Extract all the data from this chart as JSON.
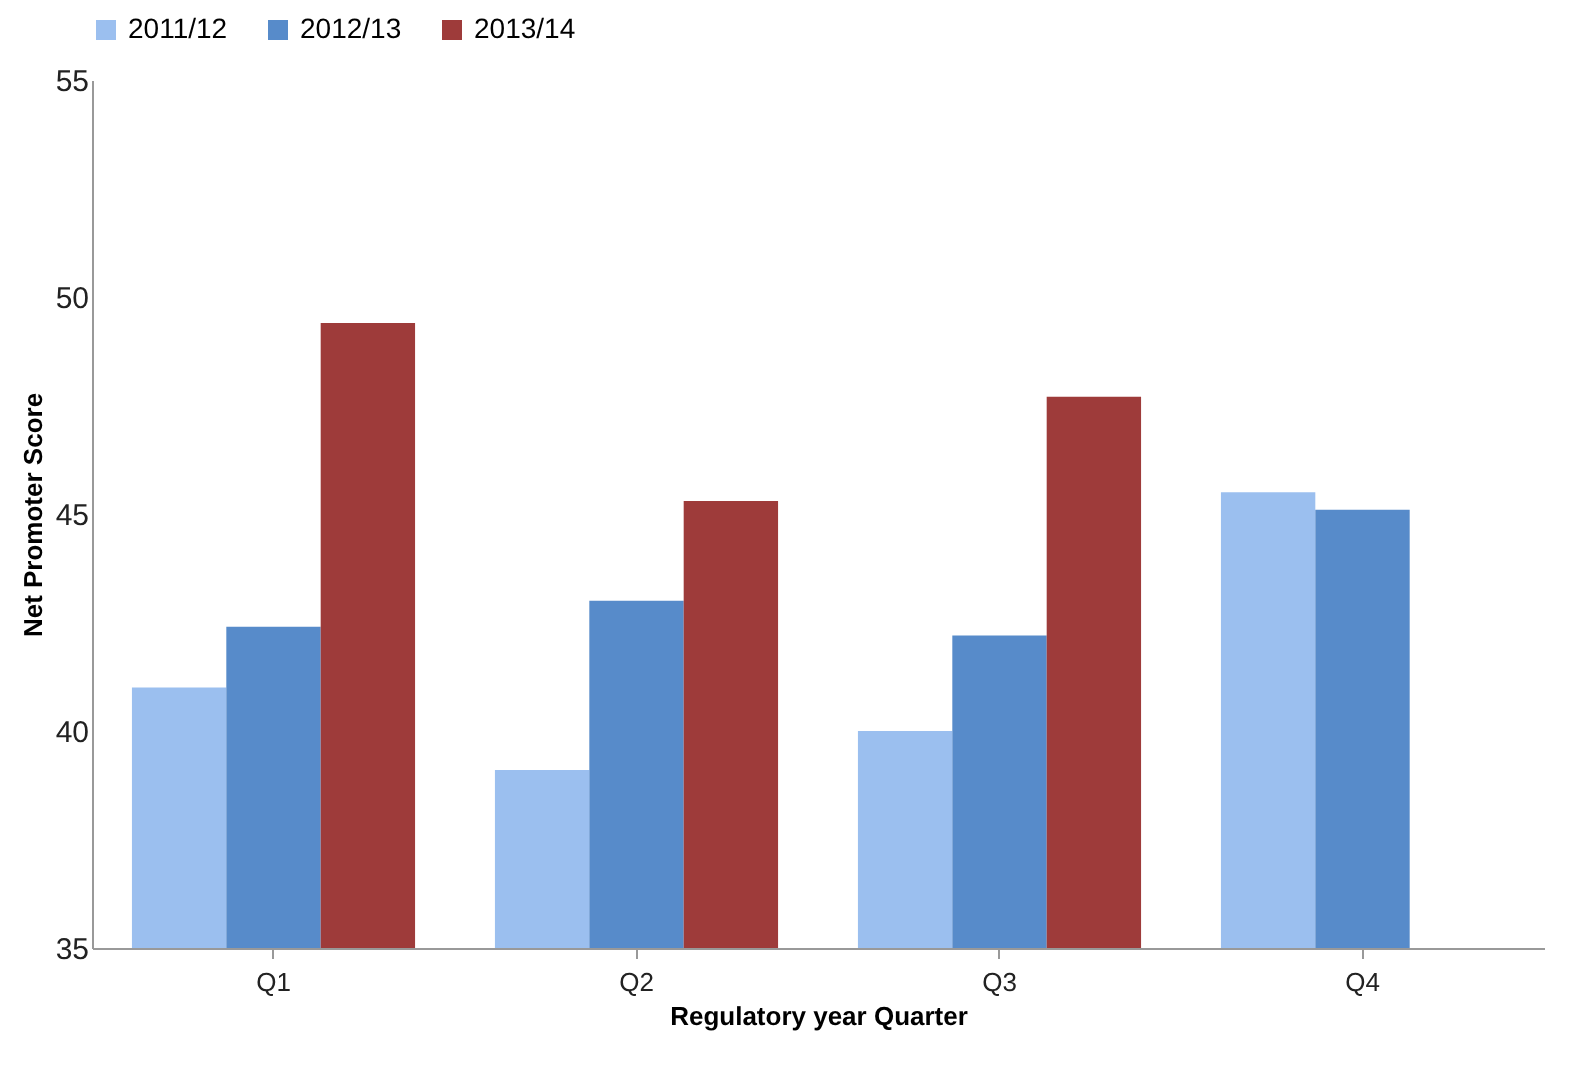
{
  "chart_data": {
    "type": "bar",
    "xlabel": "Regulatory year Quarter",
    "ylabel": "Net Promoter Score",
    "categories": [
      "Q1",
      "Q2",
      "Q3",
      "Q4"
    ],
    "series": [
      {
        "name": "2011/12",
        "color": "#9bbfef",
        "values": [
          41.0,
          39.1,
          40.0,
          45.5
        ]
      },
      {
        "name": "2012/13",
        "color": "#578bca",
        "values": [
          42.4,
          43.0,
          42.2,
          45.1
        ]
      },
      {
        "name": "2013/14",
        "color": "#9e3b3a",
        "values": [
          49.4,
          45.3,
          47.7,
          35
        ]
      }
    ],
    "ylim": [
      35,
      55
    ],
    "yticks": [
      35,
      40,
      45,
      50,
      55
    ],
    "grid": false,
    "legend": "top"
  }
}
